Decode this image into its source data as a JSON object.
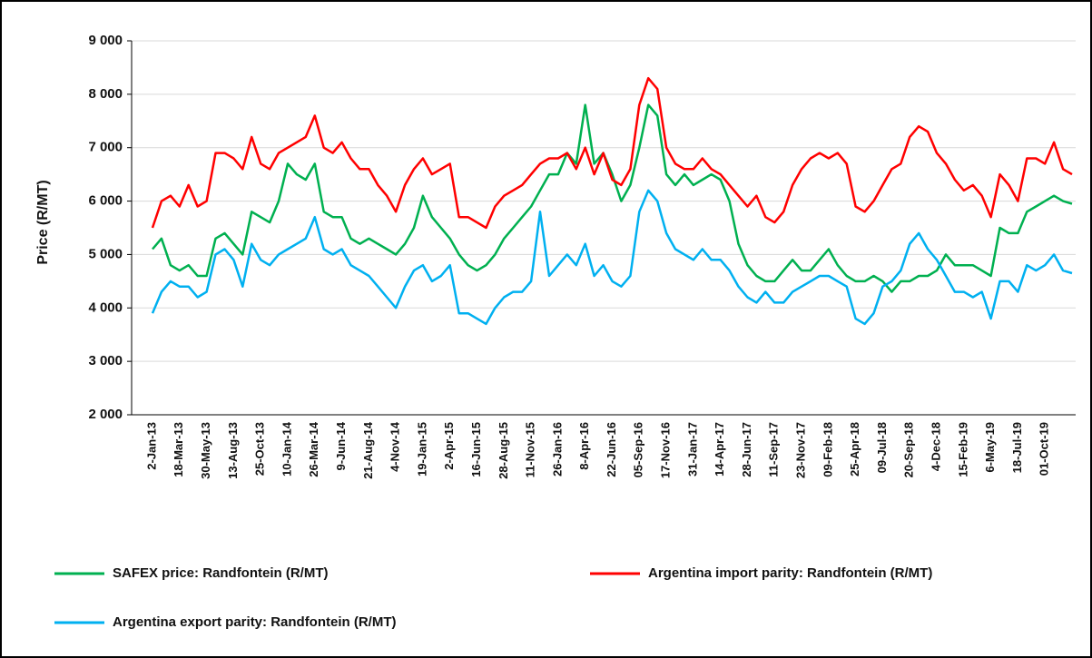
{
  "chart_data": {
    "type": "line",
    "y_label": "Price (R/MT)",
    "categories": [
      "2-Jan-13",
      null,
      null,
      "18-Mar-13",
      null,
      null,
      "30-May-13",
      null,
      null,
      "13-Aug-13",
      null,
      null,
      "25-Oct-13",
      null,
      null,
      "10-Jan-14",
      null,
      null,
      "26-Mar-14",
      null,
      null,
      "9-Jun-14",
      null,
      null,
      "21-Aug-14",
      null,
      null,
      "4-Nov-14",
      null,
      null,
      "19-Jan-15",
      null,
      null,
      "2-Apr-15",
      null,
      null,
      "16-Jun-15",
      null,
      null,
      "28-Aug-15",
      null,
      null,
      "11-Nov-15",
      null,
      null,
      "26-Jan-16",
      null,
      null,
      "8-Apr-16",
      null,
      null,
      "22-Jun-16",
      null,
      null,
      "05-Sep-16",
      null,
      null,
      "17-Nov-16",
      null,
      null,
      "31-Jan-17",
      null,
      null,
      "14-Apr-17",
      null,
      null,
      "28-Jun-17",
      null,
      null,
      "11-Sep-17",
      null,
      null,
      "23-Nov-17",
      null,
      null,
      "09-Feb-18",
      null,
      null,
      "25-Apr-18",
      null,
      null,
      "09-Jul-18",
      null,
      null,
      "20-Sep-18",
      null,
      null,
      "4-Dec-18",
      null,
      null,
      "15-Feb-19",
      null,
      null,
      "6-May-19",
      null,
      null,
      "18-Jul-19",
      null,
      null,
      "01-Oct-19",
      null,
      null,
      null
    ],
    "series": [
      {
        "name": "SAFEX price: Randfontein (R/MT)",
        "color": "#00b050",
        "values": [
          5100,
          5300,
          4800,
          4700,
          4800,
          4600,
          4600,
          5300,
          5400,
          5200,
          5000,
          5800,
          5700,
          5600,
          6000,
          6700,
          6500,
          6400,
          6700,
          5800,
          5700,
          5700,
          5300,
          5200,
          5300,
          5200,
          5100,
          5000,
          5200,
          5500,
          6100,
          5700,
          5500,
          5300,
          5000,
          4800,
          4700,
          4800,
          5000,
          5300,
          5500,
          5700,
          5900,
          6200,
          6500,
          6500,
          6900,
          6700,
          7800,
          6700,
          6900,
          6500,
          6000,
          6300,
          7000,
          7800,
          7600,
          6500,
          6300,
          6500,
          6300,
          6400,
          6500,
          6400,
          6000,
          5200,
          4800,
          4600,
          4500,
          4500,
          4700,
          4900,
          4700,
          4700,
          4900,
          5100,
          4800,
          4600,
          4500,
          4500,
          4600,
          4500,
          4300,
          4500,
          4500,
          4600,
          4600,
          4700,
          5000,
          4800,
          4800,
          4800,
          4700,
          4600,
          5500,
          5400,
          5400,
          5800,
          5900,
          6000,
          6100,
          6000,
          5950
        ]
      },
      {
        "name": "Argentina import parity: Randfontein (R/MT)",
        "color": "#ff0000",
        "values": [
          5500,
          6000,
          6100,
          5900,
          6300,
          5900,
          6000,
          6900,
          6900,
          6800,
          6600,
          7200,
          6700,
          6600,
          6900,
          7000,
          7100,
          7200,
          7600,
          7000,
          6900,
          7100,
          6800,
          6600,
          6600,
          6300,
          6100,
          5800,
          6300,
          6600,
          6800,
          6500,
          6600,
          6700,
          5700,
          5700,
          5600,
          5500,
          5900,
          6100,
          6200,
          6300,
          6500,
          6700,
          6800,
          6800,
          6900,
          6600,
          7000,
          6500,
          6900,
          6400,
          6300,
          6600,
          7800,
          8300,
          8100,
          7000,
          6700,
          6600,
          6600,
          6800,
          6600,
          6500,
          6300,
          6100,
          5900,
          6100,
          5700,
          5600,
          5800,
          6300,
          6600,
          6800,
          6900,
          6800,
          6900,
          6700,
          5900,
          5800,
          6000,
          6300,
          6600,
          6700,
          7200,
          7400,
          7300,
          6900,
          6700,
          6400,
          6200,
          6300,
          6100,
          5700,
          6500,
          6300,
          6000,
          6800,
          6800,
          6700,
          7100,
          6600,
          6500
        ]
      },
      {
        "name": "Argentina export parity: Randfontein (R/MT)",
        "color": "#00b0f0",
        "values": [
          3900,
          4300,
          4500,
          4400,
          4400,
          4200,
          4300,
          5000,
          5100,
          4900,
          4400,
          5200,
          4900,
          4800,
          5000,
          5100,
          5200,
          5300,
          5700,
          5100,
          5000,
          5100,
          4800,
          4700,
          4600,
          4400,
          4200,
          4000,
          4400,
          4700,
          4800,
          4500,
          4600,
          4800,
          3900,
          3900,
          3800,
          3700,
          4000,
          4200,
          4300,
          4300,
          4500,
          5800,
          4600,
          4800,
          5000,
          4800,
          5200,
          4600,
          4800,
          4500,
          4400,
          4600,
          5800,
          6200,
          6000,
          5400,
          5100,
          5000,
          4900,
          5100,
          4900,
          4900,
          4700,
          4400,
          4200,
          4100,
          4300,
          4100,
          4100,
          4300,
          4400,
          4500,
          4600,
          4600,
          4500,
          4400,
          3800,
          3700,
          3900,
          4400,
          4500,
          4700,
          5200,
          5400,
          5100,
          4900,
          4600,
          4300,
          4300,
          4200,
          4300,
          3800,
          4500,
          4500,
          4300,
          4800,
          4700,
          4800,
          5000,
          4700,
          4650
        ]
      }
    ],
    "ylim": [
      2000,
      9000
    ],
    "yticks": [
      {
        "value": 2000,
        "label": "2 000"
      },
      {
        "value": 3000,
        "label": "3 000"
      },
      {
        "value": 4000,
        "label": "4 000"
      },
      {
        "value": 5000,
        "label": "5 000"
      },
      {
        "value": 6000,
        "label": "6 000"
      },
      {
        "value": 7000,
        "label": "7 000"
      },
      {
        "value": 8000,
        "label": "8 000"
      },
      {
        "value": 9000,
        "label": "9 000"
      }
    ],
    "grid": true,
    "legend": "bottom"
  }
}
